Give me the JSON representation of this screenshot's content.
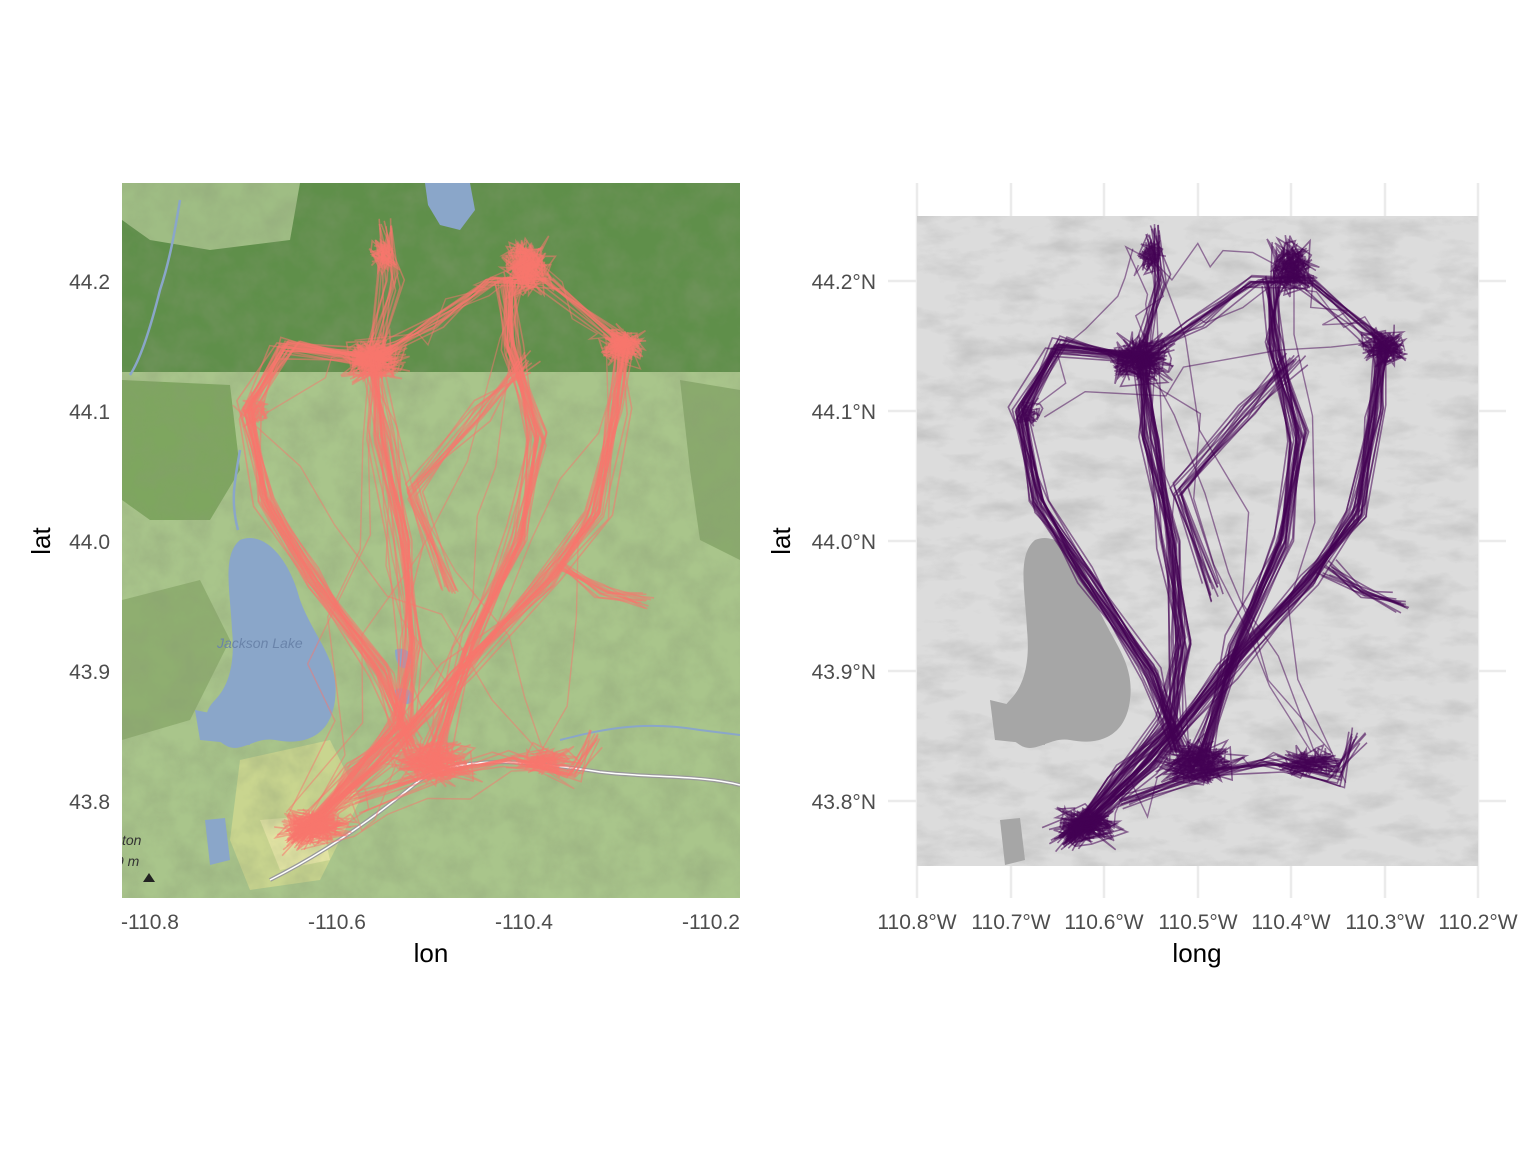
{
  "colors": {
    "track_left": "#f8766d",
    "track_right": "#440154",
    "water": "#8aa6c9",
    "forest": "#5f8f4a",
    "terrain": "#a9c58b",
    "grid": "#ebebeb",
    "tick_text": "#4d4d4d"
  },
  "left_map": {
    "xlabel": "lon",
    "ylabel": "lat",
    "x_ticks": [
      "-110.8",
      "-110.6",
      "-110.4",
      "-110.2"
    ],
    "y_ticks": [
      "43.8",
      "43.9",
      "44.0",
      "44.1",
      "44.2"
    ],
    "labels": {
      "lake": "Jackson Lake",
      "town_fragment": "ton",
      "elev_fragment": "9 m"
    },
    "icons": [
      "peak-icon"
    ]
  },
  "right_map": {
    "xlabel": "long",
    "ylabel": "lat",
    "x_ticks": [
      "110.8°W",
      "110.7°W",
      "110.6°W",
      "110.5°W",
      "110.4°W",
      "110.3°W",
      "110.2°W"
    ],
    "y_ticks": [
      "43.8°N",
      "43.9°N",
      "44.0°N",
      "44.1°N",
      "44.2°N"
    ]
  },
  "chart_data": [
    {
      "type": "scatter",
      "title": "",
      "xlabel": "lon",
      "ylabel": "lat",
      "xlim": [
        -110.82,
        -110.18
      ],
      "ylim": [
        43.725,
        44.275
      ],
      "basemap": "terrain tiles",
      "track_color": "#f8766d",
      "track_description": "many overlapping GPS movement tracks",
      "hotspots": [
        {
          "lon": -110.56,
          "lat": 44.14
        },
        {
          "lon": -110.42,
          "lat": 44.2
        },
        {
          "lon": -110.3,
          "lat": 44.15
        },
        {
          "lon": -110.52,
          "lat": 43.83
        },
        {
          "lon": -110.64,
          "lat": 43.77
        }
      ]
    },
    {
      "type": "scatter",
      "title": "",
      "xlabel": "long",
      "ylabel": "lat",
      "xlim": [
        -110.8,
        -110.2
      ],
      "ylim": [
        43.75,
        44.25
      ],
      "basemap": "grayscale raster",
      "track_color": "#440154",
      "track_description": "many overlapping GPS movement tracks",
      "hotspots": [
        {
          "lon": -110.56,
          "lat": 44.14
        },
        {
          "lon": -110.39,
          "lat": 44.21
        },
        {
          "lon": -110.28,
          "lat": 44.15
        },
        {
          "lon": -110.5,
          "lat": 43.83
        },
        {
          "lon": -110.64,
          "lat": 43.77
        }
      ]
    }
  ]
}
